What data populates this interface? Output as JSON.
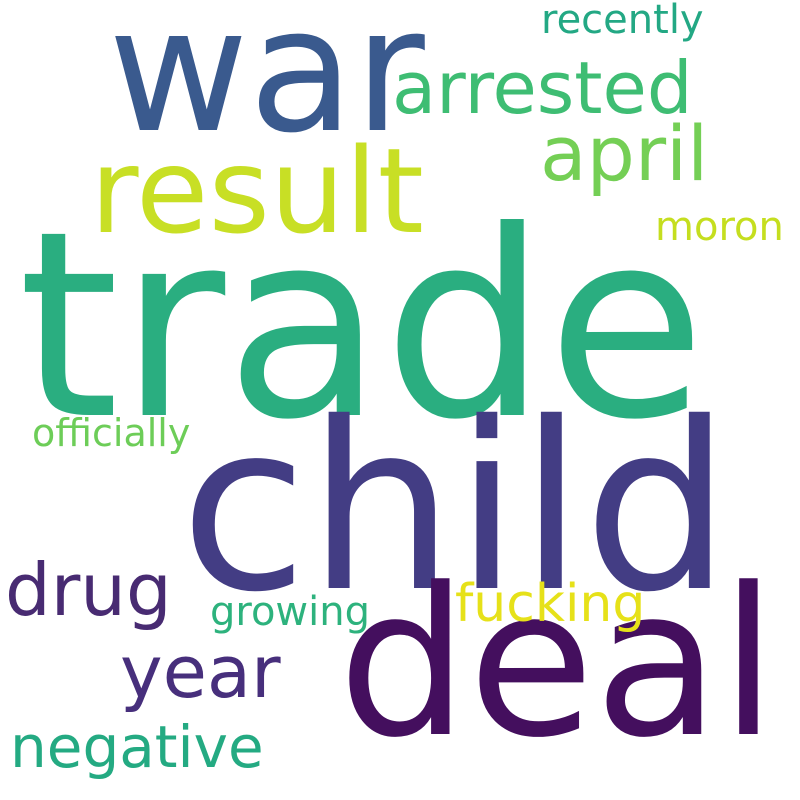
{
  "words": [
    {
      "text": "trade",
      "color": "#2aae80"
    },
    {
      "text": "child",
      "color": "#433d84"
    },
    {
      "text": "deal",
      "color": "#440f5e"
    },
    {
      "text": "war",
      "color": "#3a5a8e"
    },
    {
      "text": "result",
      "color": "#c8df25"
    },
    {
      "text": "arrested",
      "color": "#3ebd73"
    },
    {
      "text": "april",
      "color": "#74cf55"
    },
    {
      "text": "drug",
      "color": "#482b72"
    },
    {
      "text": "year",
      "color": "#472f7c"
    },
    {
      "text": "negative",
      "color": "#24aa82"
    },
    {
      "text": "fucking",
      "color": "#e6e119"
    },
    {
      "text": "growing",
      "color": "#2db27d"
    },
    {
      "text": "officially",
      "color": "#6dcd58"
    },
    {
      "text": "recently",
      "color": "#23a884"
    },
    {
      "text": "moron",
      "color": "#c5de1f"
    }
  ]
}
